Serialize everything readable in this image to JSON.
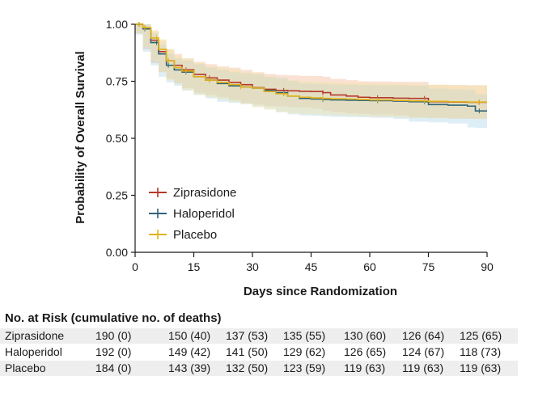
{
  "chart_data": {
    "type": "line",
    "subtype": "kaplan-meier",
    "xlabel": "Days since Randomization",
    "ylabel": "Probability of Overall Survival",
    "xlim": [
      0,
      90
    ],
    "ylim": [
      0,
      1
    ],
    "xticks": [
      0,
      15,
      30,
      45,
      60,
      75,
      90
    ],
    "xtick_labels": [
      "0",
      "15",
      "30",
      "45",
      "60",
      "75",
      "90"
    ],
    "yticks": [
      0,
      0.25,
      0.5,
      0.75,
      1
    ],
    "ytick_labels": [
      "0.00",
      "0.25",
      "0.50",
      "0.75",
      "1.00"
    ],
    "legend_position": "lower-left",
    "series": [
      {
        "name": "Ziprasidone",
        "color": "#b5382a",
        "band_color": "#f0b48c",
        "x": [
          0,
          2,
          4,
          6,
          8,
          10,
          12,
          15,
          18,
          21,
          24,
          27,
          30,
          33,
          36,
          39,
          42,
          45,
          48,
          50,
          54,
          57,
          60,
          66,
          70,
          75,
          80,
          85,
          90
        ],
        "y": [
          1.0,
          0.985,
          0.93,
          0.88,
          0.84,
          0.82,
          0.8,
          0.78,
          0.765,
          0.755,
          0.745,
          0.735,
          0.722,
          0.715,
          0.71,
          0.708,
          0.706,
          0.705,
          0.7,
          0.69,
          0.685,
          0.68,
          0.678,
          0.676,
          0.675,
          0.66,
          0.659,
          0.658,
          0.658
        ],
        "lower": [
          1.0,
          0.96,
          0.89,
          0.83,
          0.79,
          0.76,
          0.74,
          0.72,
          0.7,
          0.69,
          0.68,
          0.668,
          0.655,
          0.648,
          0.642,
          0.64,
          0.637,
          0.635,
          0.63,
          0.62,
          0.615,
          0.61,
          0.607,
          0.604,
          0.6,
          0.59,
          0.588,
          0.586,
          0.585
        ],
        "upper": [
          1.0,
          1.0,
          0.97,
          0.93,
          0.89,
          0.87,
          0.85,
          0.835,
          0.825,
          0.815,
          0.81,
          0.8,
          0.79,
          0.782,
          0.778,
          0.776,
          0.774,
          0.773,
          0.77,
          0.76,
          0.755,
          0.75,
          0.749,
          0.748,
          0.748,
          0.735,
          0.734,
          0.733,
          0.733
        ]
      },
      {
        "name": "Haloperidol",
        "color": "#2f6478",
        "band_color": "#a9d3e8",
        "x": [
          0,
          2,
          4,
          6,
          8,
          10,
          12,
          15,
          18,
          21,
          24,
          27,
          30,
          33,
          36,
          39,
          42,
          45,
          48,
          50,
          54,
          57,
          60,
          66,
          70,
          75,
          80,
          85,
          87,
          90
        ],
        "y": [
          1.0,
          0.98,
          0.92,
          0.87,
          0.82,
          0.8,
          0.79,
          0.77,
          0.755,
          0.74,
          0.73,
          0.725,
          0.72,
          0.71,
          0.7,
          0.685,
          0.675,
          0.672,
          0.67,
          0.668,
          0.667,
          0.666,
          0.665,
          0.663,
          0.66,
          0.648,
          0.645,
          0.641,
          0.62,
          0.62
        ],
        "lower": [
          1.0,
          0.955,
          0.88,
          0.82,
          0.77,
          0.745,
          0.73,
          0.71,
          0.69,
          0.675,
          0.66,
          0.655,
          0.65,
          0.64,
          0.63,
          0.615,
          0.605,
          0.6,
          0.598,
          0.596,
          0.594,
          0.593,
          0.592,
          0.59,
          0.585,
          0.573,
          0.57,
          0.565,
          0.548,
          0.545
        ],
        "upper": [
          1.0,
          1.0,
          0.96,
          0.91,
          0.87,
          0.85,
          0.84,
          0.825,
          0.81,
          0.8,
          0.79,
          0.785,
          0.78,
          0.77,
          0.765,
          0.752,
          0.742,
          0.74,
          0.738,
          0.736,
          0.735,
          0.734,
          0.733,
          0.732,
          0.73,
          0.718,
          0.715,
          0.712,
          0.693,
          0.693
        ]
      },
      {
        "name": "Placebo",
        "color": "#e2b318",
        "band_color": "#f3e29a",
        "x": [
          0,
          2,
          4,
          6,
          8,
          10,
          12,
          15,
          18,
          21,
          24,
          27,
          30,
          33,
          36,
          39,
          42,
          45,
          48,
          50,
          54,
          57,
          60,
          66,
          70,
          75,
          80,
          85,
          90
        ],
        "y": [
          1.0,
          0.985,
          0.94,
          0.89,
          0.84,
          0.81,
          0.795,
          0.77,
          0.755,
          0.745,
          0.735,
          0.725,
          0.72,
          0.705,
          0.695,
          0.685,
          0.68,
          0.677,
          0.675,
          0.673,
          0.672,
          0.67,
          0.668,
          0.666,
          0.664,
          0.662,
          0.66,
          0.659,
          0.659
        ],
        "lower": [
          1.0,
          0.96,
          0.9,
          0.84,
          0.79,
          0.755,
          0.74,
          0.71,
          0.69,
          0.68,
          0.67,
          0.66,
          0.65,
          0.635,
          0.625,
          0.615,
          0.61,
          0.606,
          0.604,
          0.602,
          0.6,
          0.598,
          0.596,
          0.594,
          0.592,
          0.59,
          0.588,
          0.587,
          0.586
        ],
        "upper": [
          1.0,
          1.0,
          0.975,
          0.935,
          0.89,
          0.86,
          0.85,
          0.83,
          0.815,
          0.808,
          0.8,
          0.79,
          0.785,
          0.772,
          0.762,
          0.754,
          0.75,
          0.748,
          0.746,
          0.744,
          0.743,
          0.742,
          0.74,
          0.738,
          0.736,
          0.734,
          0.732,
          0.731,
          0.731
        ]
      }
    ]
  },
  "risk_table": {
    "title": "No. at Risk (cumulative no. of deaths)",
    "rows": [
      {
        "label": "Ziprasidone",
        "values": [
          "190 (0)",
          "150 (40)",
          "137 (53)",
          "135 (55)",
          "130 (60)",
          "126 (64)",
          "125 (65)"
        ]
      },
      {
        "label": "Haloperidol",
        "values": [
          "192 (0)",
          "149 (42)",
          "141 (50)",
          "129 (62)",
          "126 (65)",
          "124 (67)",
          "118 (73)"
        ]
      },
      {
        "label": "Placebo",
        "values": [
          "184 (0)",
          "143 (39)",
          "132 (50)",
          "123 (59)",
          "119 (63)",
          "119 (63)",
          "119 (63)"
        ]
      }
    ]
  }
}
